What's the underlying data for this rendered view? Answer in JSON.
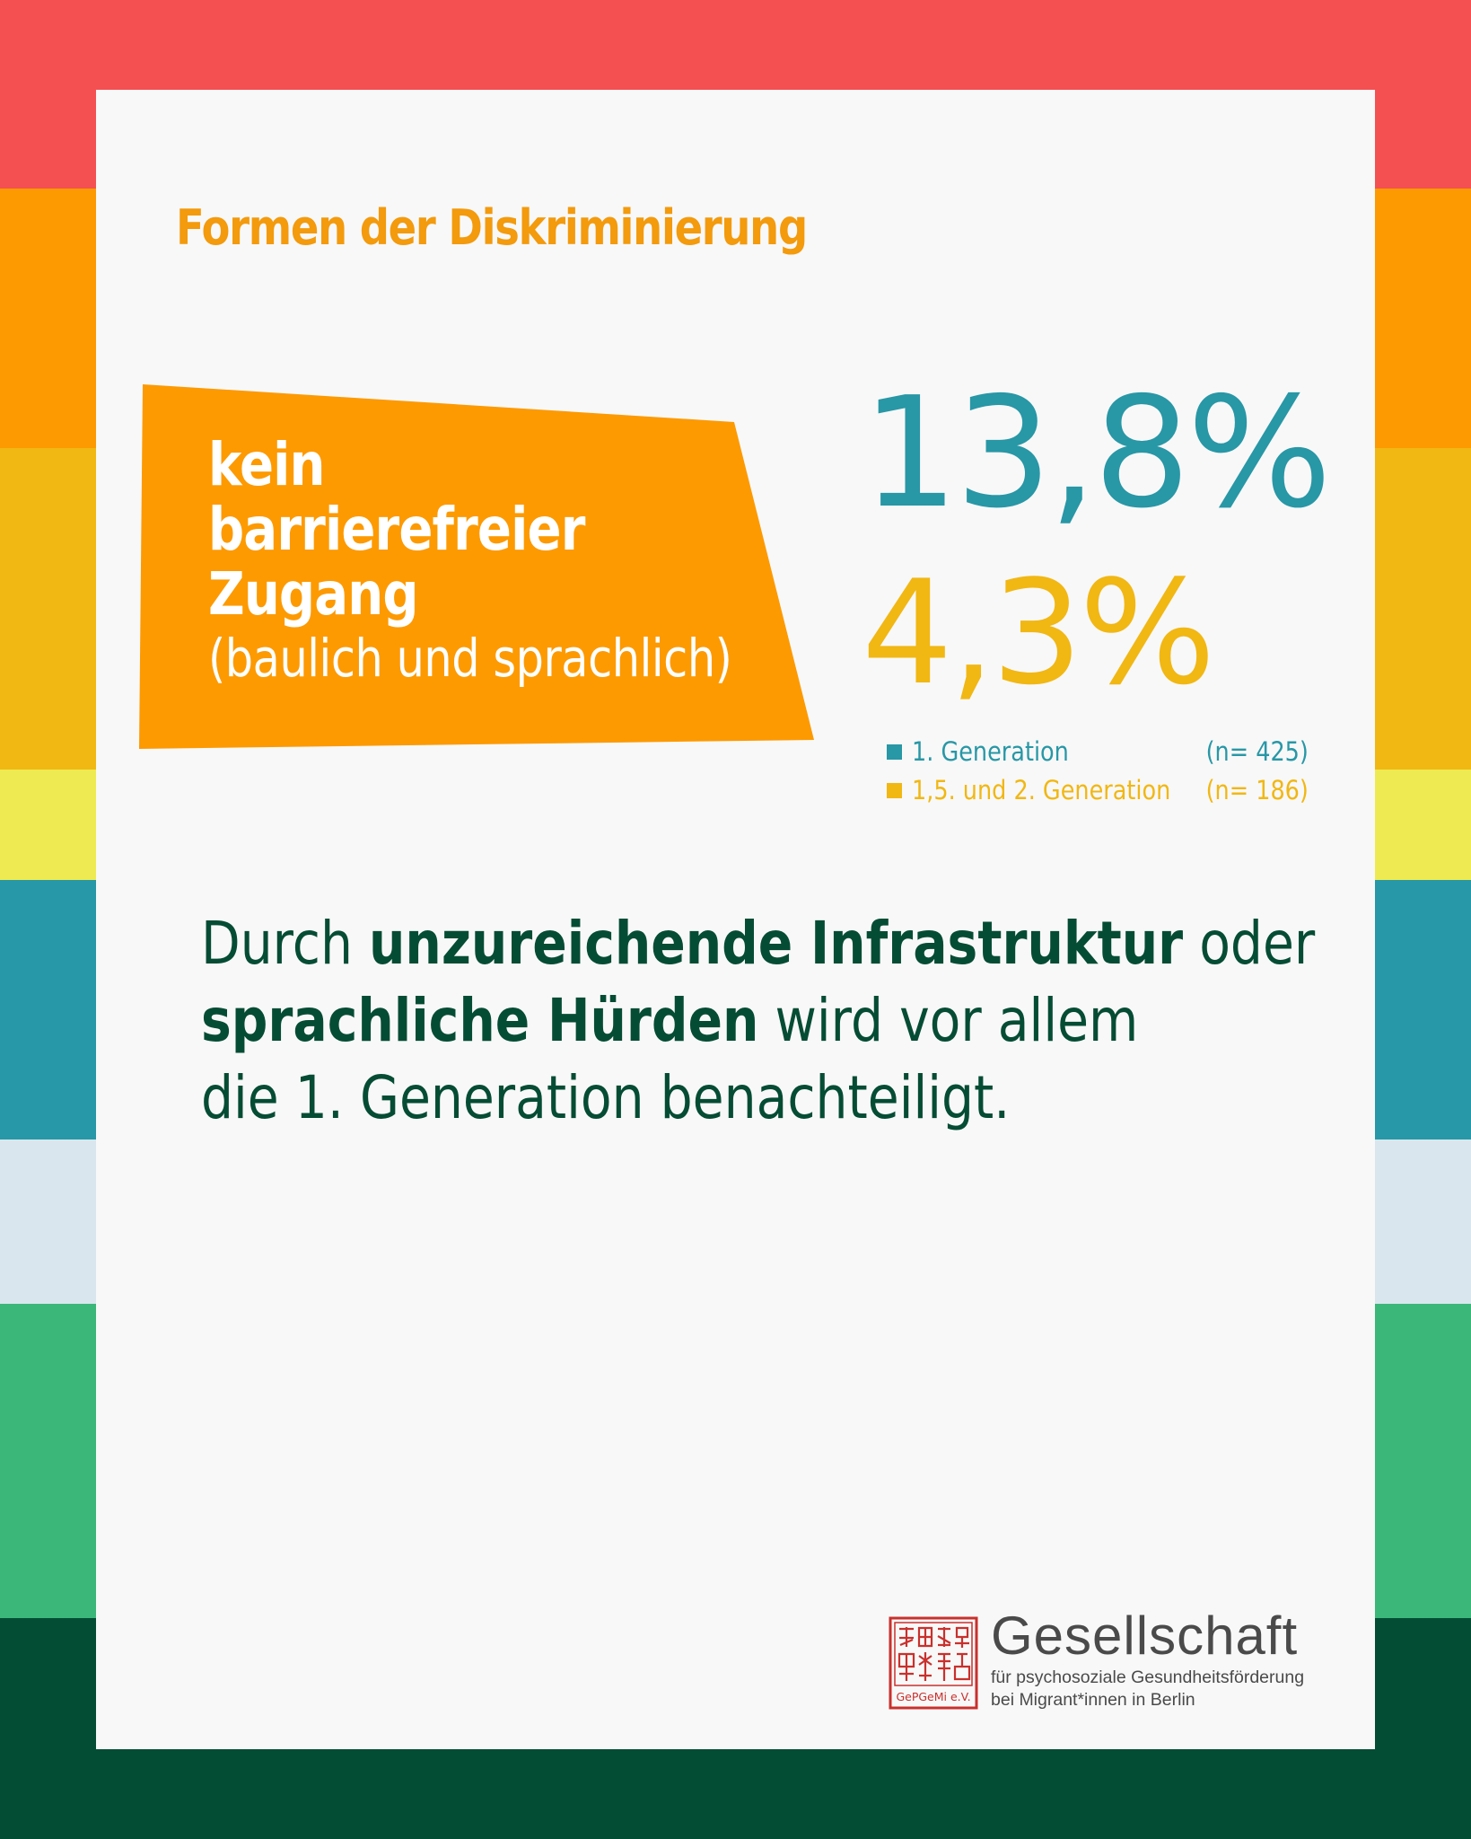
{
  "colors": {
    "stripes": [
      "#f45052",
      "#fd9a02",
      "#f1b813",
      "#eeea51",
      "#2798a7",
      "#d9e6ed",
      "#3bb77a",
      "#024d34"
    ],
    "card_background": "#f8f8f8",
    "heading": "#f39a0d",
    "banner": "#fd9a02",
    "first_generation": "#2897a6",
    "second_generation": "#f1b713",
    "body_text": "#054c34",
    "logo_red": "#c9302c"
  },
  "heading": "Formen der Diskriminierung",
  "banner": {
    "line1": "kein",
    "line2": "barrierefreier",
    "line3": "Zugang",
    "line4": "(baulich und sprachlich)"
  },
  "stats": {
    "first": "13,8%",
    "second": "4,3%"
  },
  "legend": [
    {
      "label": "1.  Generation",
      "n": "(n= 425)"
    },
    {
      "label": "1,5. und 2.  Generation",
      "n": "(n= 186)"
    }
  ],
  "body": {
    "l1_a": "Durch ",
    "l1_b": "unzureichende Infrastruktur",
    "l1_c": " oder",
    "l2_a": "sprachliche Hürden",
    "l2_b": " wird vor allem",
    "l3": "die 1. Generation benachteiligt."
  },
  "logo": {
    "name": "Gesellschaft",
    "line1": "für psychosoziale Gesundheitsförderung",
    "line2": "bei Migrant*innen in Berlin",
    "seal_text": "GePGeMi e.V."
  }
}
